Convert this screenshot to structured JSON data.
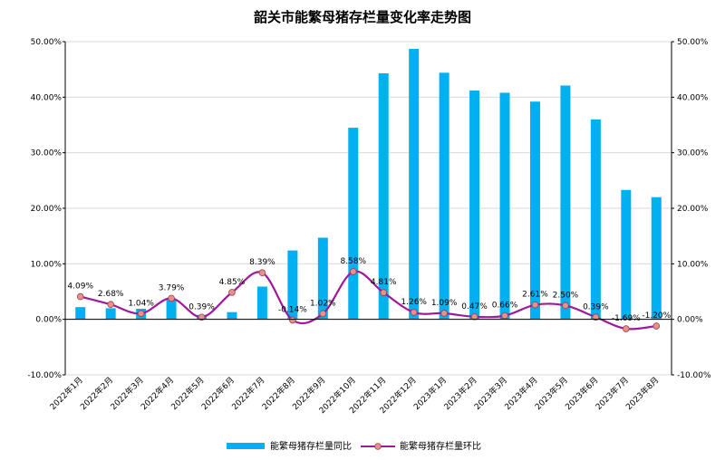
{
  "chart_data": {
    "type": "bar+line",
    "title": "韶关市能繁母猪存栏量变化率走势图",
    "categories": [
      "2022年1月",
      "2022年2月",
      "2022年3月",
      "2022年4月",
      "2022年5月",
      "2022年6月",
      "2022年7月",
      "2022年8月",
      "2022年9月",
      "2022年10月",
      "2022年11月",
      "2022年12月",
      "2023年1月",
      "2023年2月",
      "2023年3月",
      "2023年4月",
      "2023年5月",
      "2023年6月",
      "2023年7月",
      "2023年8月"
    ],
    "ylim": [
      -10,
      50
    ],
    "yticks": [
      "50.00%",
      "40.00%",
      "30.00%",
      "20.00%",
      "10.00%",
      "0.00%",
      "-10.00%"
    ],
    "ytick_values": [
      50,
      40,
      30,
      20,
      10,
      0,
      -10
    ],
    "series": [
      {
        "name": "能繁母猪存栏量同比",
        "type": "bar",
        "color": "#00b0f0",
        "values": [
          2.2,
          2.0,
          1.9,
          3.5,
          0.8,
          1.3,
          5.9,
          12.4,
          14.7,
          34.5,
          44.3,
          48.7,
          44.4,
          41.2,
          40.8,
          39.2,
          42.1,
          36.0,
          23.3,
          22.0
        ]
      },
      {
        "name": "能繁母猪存栏量环比",
        "type": "line",
        "color": "#a0199a",
        "marker_color": "#e8908c",
        "values": [
          4.09,
          2.68,
          1.04,
          3.79,
          0.39,
          4.85,
          8.39,
          -0.14,
          1.02,
          8.58,
          4.81,
          1.26,
          1.09,
          0.47,
          0.66,
          2.61,
          2.5,
          0.39,
          -1.69,
          -1.2
        ],
        "labels": [
          "4.09%",
          "2.68%",
          "1.04%",
          "3.79%",
          "0.39%",
          "4.85%",
          "8.39%",
          "-0.14%",
          "1.02%",
          "8.58%",
          "4.81%",
          "1.26%",
          "1.09%",
          "0.47%",
          "0.66%",
          "2.61%",
          "2.50%",
          "0.39%",
          "-1.69%",
          "-1.20%"
        ]
      }
    ],
    "legend_position": "bottom"
  }
}
